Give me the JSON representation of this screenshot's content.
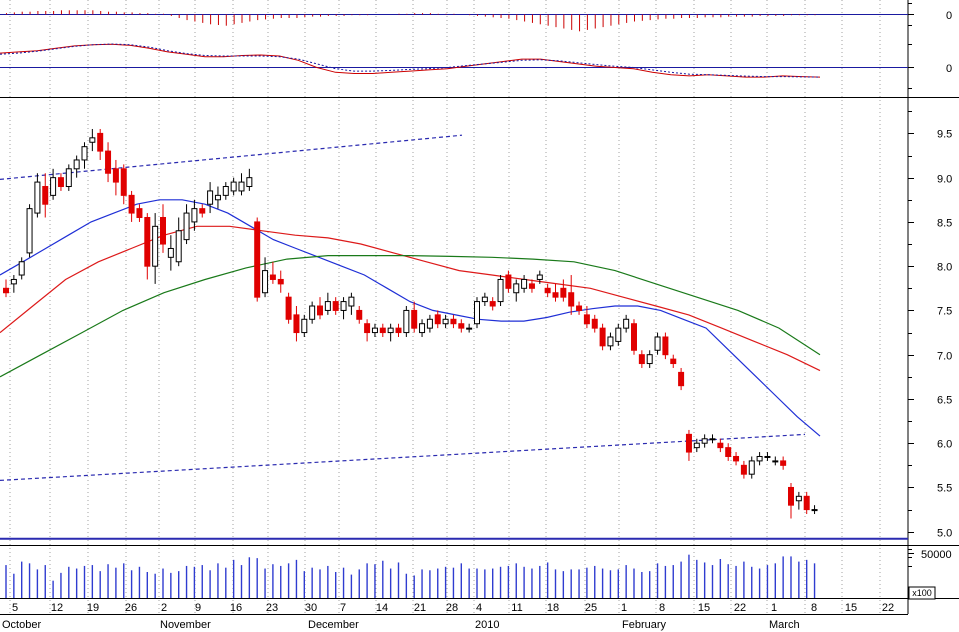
{
  "colors": {
    "up": "#000000",
    "down": "#e00000",
    "ma_blue": "#1f2fd6",
    "ma_red": "#dd1a1a",
    "ma_green": "#1a7a1a",
    "trend": "#2a2ab0",
    "volume": "#2f3cd0",
    "macd_hist": "#cc0000",
    "macd_line": "#cc0000",
    "macd_signal": "#1a1aa0",
    "frame": "#000000"
  },
  "x_axis": {
    "day_labels": [
      "5",
      "12",
      "19",
      "26",
      "2",
      "9",
      "16",
      "23",
      "30",
      "7",
      "14",
      "21",
      "28",
      "4",
      "11",
      "18",
      "25",
      "1",
      "8",
      "15",
      "22",
      "1",
      "8",
      "15",
      "22"
    ],
    "month_labels": [
      "October",
      "November",
      "December",
      "2010",
      "February",
      "March"
    ]
  },
  "macd_panel": {
    "tick_label": "0"
  },
  "signal_panel": {
    "tick_label": "0"
  },
  "volume_panel": {
    "tick_label": "50000",
    "multiplier_label": "x100"
  },
  "chart_data": [
    {
      "type": "candlestick",
      "panel": "price",
      "ylim": [
        4.85,
        9.9
      ],
      "yticks": [
        5.0,
        5.5,
        6.0,
        6.5,
        7.0,
        7.5,
        8.0,
        8.5,
        9.0,
        9.5
      ],
      "ytick_labels": [
        "5.0",
        "5.5",
        "6.0",
        "6.5",
        "7.0",
        "7.5",
        "8.0",
        "8.5",
        "9.0",
        "9.5"
      ],
      "x_range": [
        0,
        130
      ],
      "ohlc": [
        [
          7.75,
          7.85,
          7.65,
          7.7
        ],
        [
          7.8,
          7.9,
          7.7,
          7.85
        ],
        [
          7.9,
          8.1,
          7.85,
          8.05
        ],
        [
          8.15,
          8.7,
          8.1,
          8.65
        ],
        [
          8.6,
          9.05,
          8.55,
          8.95
        ],
        [
          8.9,
          9.05,
          8.55,
          8.7
        ],
        [
          8.8,
          9.1,
          8.75,
          9.0
        ],
        [
          9.0,
          9.05,
          8.85,
          8.9
        ],
        [
          8.9,
          9.15,
          8.85,
          9.1
        ],
        [
          9.1,
          9.25,
          9.0,
          9.2
        ],
        [
          9.2,
          9.4,
          9.1,
          9.35
        ],
        [
          9.4,
          9.55,
          9.3,
          9.45
        ],
        [
          9.5,
          9.55,
          9.2,
          9.3
        ],
        [
          9.3,
          9.4,
          8.95,
          9.05
        ],
        [
          9.1,
          9.2,
          8.8,
          8.95
        ],
        [
          9.1,
          9.15,
          8.7,
          8.8
        ],
        [
          8.8,
          8.85,
          8.5,
          8.6
        ],
        [
          8.65,
          8.7,
          8.5,
          8.55
        ],
        [
          8.55,
          8.6,
          7.85,
          8.0
        ],
        [
          8.0,
          8.6,
          7.8,
          8.45
        ],
        [
          8.55,
          8.7,
          8.15,
          8.25
        ],
        [
          8.1,
          8.35,
          7.95,
          8.2
        ],
        [
          8.05,
          8.55,
          8.0,
          8.4
        ],
        [
          8.3,
          8.7,
          8.25,
          8.6
        ],
        [
          8.5,
          8.75,
          8.4,
          8.65
        ],
        [
          8.65,
          8.7,
          8.55,
          8.6
        ],
        [
          8.7,
          8.95,
          8.6,
          8.85
        ],
        [
          8.75,
          8.9,
          8.65,
          8.8
        ],
        [
          8.8,
          8.95,
          8.75,
          8.9
        ],
        [
          8.85,
          9.0,
          8.8,
          8.95
        ],
        [
          8.85,
          9.05,
          8.8,
          8.95
        ],
        [
          8.9,
          9.1,
          8.85,
          9.0
        ],
        [
          8.5,
          8.55,
          7.6,
          7.65
        ],
        [
          7.7,
          8.1,
          7.65,
          7.95
        ],
        [
          7.9,
          8.05,
          7.8,
          7.85
        ],
        [
          7.85,
          7.95,
          7.7,
          7.8
        ],
        [
          7.65,
          7.7,
          7.35,
          7.4
        ],
        [
          7.45,
          7.55,
          7.15,
          7.25
        ],
        [
          7.25,
          7.45,
          7.2,
          7.4
        ],
        [
          7.4,
          7.6,
          7.35,
          7.55
        ],
        [
          7.55,
          7.65,
          7.4,
          7.45
        ],
        [
          7.5,
          7.7,
          7.45,
          7.6
        ],
        [
          7.6,
          7.65,
          7.45,
          7.5
        ],
        [
          7.5,
          7.65,
          7.4,
          7.6
        ],
        [
          7.55,
          7.7,
          7.45,
          7.65
        ],
        [
          7.5,
          7.55,
          7.35,
          7.4
        ],
        [
          7.35,
          7.4,
          7.15,
          7.25
        ],
        [
          7.25,
          7.35,
          7.2,
          7.3
        ],
        [
          7.3,
          7.35,
          7.2,
          7.25
        ],
        [
          7.25,
          7.35,
          7.15,
          7.3
        ],
        [
          7.3,
          7.35,
          7.2,
          7.25
        ],
        [
          7.25,
          7.55,
          7.2,
          7.5
        ],
        [
          7.5,
          7.6,
          7.25,
          7.3
        ],
        [
          7.25,
          7.4,
          7.2,
          7.35
        ],
        [
          7.3,
          7.45,
          7.25,
          7.4
        ],
        [
          7.45,
          7.5,
          7.3,
          7.35
        ],
        [
          7.35,
          7.45,
          7.3,
          7.4
        ],
        [
          7.4,
          7.45,
          7.3,
          7.35
        ],
        [
          7.35,
          7.4,
          7.25,
          7.3
        ],
        [
          7.3,
          7.35,
          7.25,
          7.3
        ],
        [
          7.35,
          7.65,
          7.3,
          7.6
        ],
        [
          7.6,
          7.7,
          7.55,
          7.65
        ],
        [
          7.6,
          7.65,
          7.5,
          7.55
        ],
        [
          7.6,
          7.9,
          7.55,
          7.85
        ],
        [
          7.9,
          7.95,
          7.7,
          7.75
        ],
        [
          7.7,
          7.85,
          7.6,
          7.8
        ],
        [
          7.75,
          7.9,
          7.7,
          7.85
        ],
        [
          7.8,
          7.85,
          7.7,
          7.75
        ],
        [
          7.85,
          7.95,
          7.8,
          7.9
        ],
        [
          7.75,
          7.8,
          7.65,
          7.7
        ],
        [
          7.7,
          7.8,
          7.6,
          7.65
        ],
        [
          7.75,
          7.85,
          7.6,
          7.65
        ],
        [
          7.7,
          7.9,
          7.45,
          7.55
        ],
        [
          7.55,
          7.6,
          7.45,
          7.5
        ],
        [
          7.45,
          7.55,
          7.3,
          7.35
        ],
        [
          7.4,
          7.45,
          7.25,
          7.3
        ],
        [
          7.3,
          7.35,
          7.05,
          7.1
        ],
        [
          7.1,
          7.25,
          7.05,
          7.2
        ],
        [
          7.15,
          7.35,
          7.1,
          7.3
        ],
        [
          7.3,
          7.45,
          7.25,
          7.4
        ],
        [
          7.35,
          7.4,
          7.0,
          7.05
        ],
        [
          7.0,
          7.05,
          6.85,
          6.9
        ],
        [
          6.9,
          7.05,
          6.85,
          7.0
        ],
        [
          7.05,
          7.25,
          7.0,
          7.2
        ],
        [
          7.2,
          7.25,
          6.95,
          7.0
        ],
        [
          6.95,
          7.0,
          6.85,
          6.9
        ],
        [
          6.8,
          6.85,
          6.6,
          6.65
        ],
        [
          6.1,
          6.15,
          5.8,
          5.9
        ],
        [
          5.95,
          6.05,
          5.9,
          6.0
        ],
        [
          6.0,
          6.1,
          5.95,
          6.05
        ],
        [
          6.05,
          6.1,
          6.0,
          6.05
        ],
        [
          6.0,
          6.05,
          5.9,
          5.95
        ],
        [
          5.95,
          6.0,
          5.8,
          5.85
        ],
        [
          5.85,
          5.9,
          5.75,
          5.8
        ],
        [
          5.75,
          5.8,
          5.6,
          5.65
        ],
        [
          5.65,
          5.85,
          5.6,
          5.8
        ],
        [
          5.8,
          5.9,
          5.75,
          5.85
        ],
        [
          5.85,
          5.9,
          5.8,
          5.85
        ],
        [
          5.8,
          5.85,
          5.75,
          5.8
        ],
        [
          5.8,
          5.85,
          5.7,
          5.75
        ],
        [
          5.5,
          5.55,
          5.15,
          5.3
        ],
        [
          5.35,
          5.45,
          5.25,
          5.4
        ],
        [
          5.4,
          5.45,
          5.2,
          5.25
        ],
        [
          5.25,
          5.3,
          5.2,
          5.25
        ]
      ],
      "overlays": [
        {
          "name": "",
          "color": "ma_blue",
          "dash": false,
          "y": [
            7.9,
            8.05,
            8.2,
            8.35,
            8.5,
            8.6,
            8.7,
            8.75,
            8.75,
            8.7,
            8.6,
            8.45,
            8.3,
            8.2,
            8.1,
            8.0,
            7.9,
            7.75,
            7.6,
            7.5,
            7.45,
            7.4,
            7.38,
            7.38,
            7.42,
            7.48,
            7.52,
            7.55,
            7.55,
            7.5,
            7.4,
            7.3,
            7.05,
            6.8,
            6.55,
            6.3,
            6.08
          ]
        },
        {
          "name": "",
          "color": "ma_red",
          "dash": false,
          "y": [
            7.25,
            7.55,
            7.85,
            8.05,
            8.2,
            8.35,
            8.45,
            8.45,
            8.4,
            8.35,
            8.32,
            8.25,
            8.15,
            8.05,
            7.95,
            7.9,
            7.85,
            7.8,
            7.75,
            7.65,
            7.55,
            7.45,
            7.3,
            7.15,
            7.0,
            6.82
          ]
        },
        {
          "name": "",
          "color": "ma_green",
          "dash": false,
          "y": [
            6.75,
            7.0,
            7.25,
            7.5,
            7.7,
            7.85,
            7.98,
            8.08,
            8.12,
            8.12,
            8.12,
            8.11,
            8.1,
            8.08,
            8.05,
            7.95,
            7.8,
            7.65,
            7.5,
            7.3,
            7.0
          ]
        },
        {
          "name": "",
          "color": "trend",
          "dash": true,
          "y": [
            8.98,
            9.48
          ]
        },
        {
          "name": "",
          "color": "trend",
          "dash": true,
          "y": [
            5.58,
            6.1
          ]
        },
        {
          "name": "",
          "color": "trend",
          "dash": false,
          "y": [
            4.92,
            4.92
          ]
        }
      ]
    },
    {
      "type": "bar",
      "panel": "volume",
      "ylim": [
        0,
        60000
      ],
      "values": [
        38000,
        28000,
        42000,
        40000,
        33000,
        38000,
        20000,
        29000,
        36000,
        34000,
        37000,
        38000,
        31000,
        39000,
        35000,
        40000,
        32000,
        36000,
        30000,
        28000,
        34000,
        29000,
        31000,
        37000,
        36000,
        38000,
        32000,
        40000,
        35000,
        44000,
        38000,
        47000,
        46000,
        34000,
        39000,
        37000,
        40000,
        44000,
        31000,
        35000,
        33000,
        37000,
        30000,
        35000,
        27000,
        33000,
        40000,
        39000,
        43000,
        34000,
        41000,
        28000,
        26000,
        33000,
        32000,
        34000,
        36000,
        35000,
        40000,
        34000,
        34000,
        33000,
        34000,
        36000,
        37000,
        40000,
        36000,
        34000,
        37000,
        41000,
        33000,
        31000,
        33000,
        33000,
        35000,
        37000,
        34000,
        32000,
        33000,
        38000,
        34000,
        30000,
        31000,
        40000,
        37000,
        38000,
        42000,
        50000,
        44000,
        41000,
        38000,
        45000,
        39000,
        37000,
        42000,
        36000,
        34000,
        38000,
        40000,
        48000,
        48000,
        42000,
        44000,
        40000
      ]
    },
    {
      "type": "bar",
      "panel": "macd_histogram",
      "values": [
        0.02,
        0.03,
        0.04,
        0.04,
        0.05,
        0.05,
        0.05,
        0.06,
        0.06,
        0.06,
        0.06,
        0.06,
        0.05,
        0.04,
        0.04,
        0.03,
        0.03,
        0.02,
        0.02,
        0.01,
        0.01,
        -0.02,
        -0.05,
        -0.08,
        -0.1,
        -0.12,
        -0.14,
        -0.15,
        -0.16,
        -0.14,
        -0.12,
        -0.1,
        -0.08,
        -0.07,
        -0.06,
        -0.05,
        -0.05,
        -0.05,
        -0.04,
        -0.03,
        -0.03,
        -0.02,
        -0.02,
        -0.02,
        -0.01,
        -0.01,
        -0.01,
        0.0,
        0.0,
        0.0,
        0.01,
        0.01,
        0.02,
        0.02,
        0.02,
        0.01,
        0.01,
        0.01,
        0.0,
        -0.01,
        -0.02,
        -0.03,
        -0.04,
        -0.05,
        -0.06,
        -0.08,
        -0.1,
        -0.12,
        -0.14,
        -0.16,
        -0.18,
        -0.2,
        -0.22,
        -0.24,
        -0.22,
        -0.2,
        -0.18,
        -0.16,
        -0.14,
        -0.12,
        -0.1,
        -0.09,
        -0.08,
        -0.07,
        -0.06,
        -0.06,
        -0.05,
        -0.05,
        -0.05,
        -0.04,
        -0.04,
        -0.04,
        -0.03,
        -0.03,
        -0.03,
        -0.03,
        -0.02,
        -0.02,
        -0.02,
        -0.02,
        -0.01,
        -0.01,
        -0.01,
        -0.01
      ]
    },
    {
      "type": "line",
      "panel": "macd",
      "series": [
        {
          "name": "",
          "color": "macd_line",
          "dash": false,
          "y": [
            0.6,
            0.65,
            0.7,
            0.8,
            0.9,
            0.95,
            0.97,
            0.92,
            0.8,
            0.65,
            0.55,
            0.45,
            0.45,
            0.5,
            0.52,
            0.48,
            0.3,
            0.0,
            -0.2,
            -0.25,
            -0.25,
            -0.2,
            -0.15,
            -0.1,
            -0.05,
            0.05,
            0.15,
            0.25,
            0.35,
            0.35,
            0.25,
            0.15,
            0.05,
            0.0,
            -0.05,
            -0.2,
            -0.3,
            -0.35,
            -0.3,
            -0.35,
            -0.4,
            -0.4,
            -0.35,
            -0.38,
            -0.4
          ]
        },
        {
          "name": "",
          "color": "macd_signal",
          "dash": true,
          "y": [
            0.55,
            0.6,
            0.68,
            0.78,
            0.88,
            0.95,
            0.98,
            0.95,
            0.85,
            0.7,
            0.58,
            0.5,
            0.48,
            0.48,
            0.48,
            0.45,
            0.35,
            0.15,
            -0.05,
            -0.15,
            -0.15,
            -0.12,
            -0.08,
            -0.05,
            0.0,
            0.08,
            0.15,
            0.22,
            0.3,
            0.32,
            0.28,
            0.2,
            0.12,
            0.05,
            0.0,
            -0.1,
            -0.2,
            -0.28,
            -0.3,
            -0.33,
            -0.36,
            -0.38,
            -0.38,
            -0.39,
            -0.4
          ]
        }
      ]
    }
  ]
}
